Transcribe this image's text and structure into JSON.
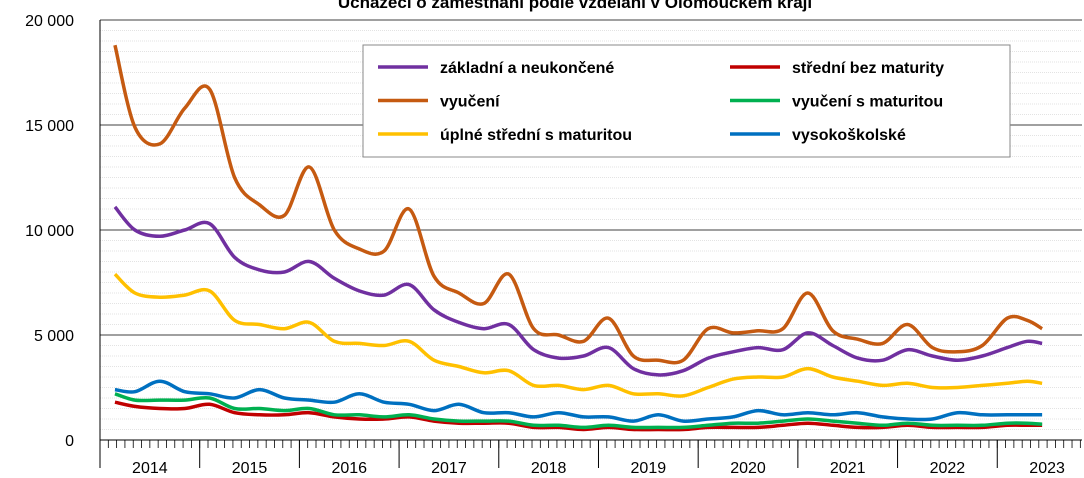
{
  "chart_data": {
    "type": "line",
    "title": "Uchazeči o zaměstnání podle vzdělání v Olomouckém kraji",
    "x": [
      2014.15,
      2014.35,
      2014.6,
      2014.85,
      2015.1,
      2015.35,
      2015.6,
      2015.85,
      2016.1,
      2016.35,
      2016.6,
      2016.85,
      2017.1,
      2017.35,
      2017.6,
      2017.85,
      2018.1,
      2018.35,
      2018.6,
      2018.85,
      2019.1,
      2019.35,
      2019.6,
      2019.85,
      2020.1,
      2020.35,
      2020.6,
      2020.85,
      2021.1,
      2021.35,
      2021.6,
      2021.85,
      2022.1,
      2022.35,
      2022.6,
      2022.85,
      2023.1,
      2023.3,
      2023.45
    ],
    "xlim": [
      2014,
      2023.85
    ],
    "xticks": [
      2014,
      2015,
      2016,
      2017,
      2018,
      2019,
      2020,
      2021,
      2022,
      2023
    ],
    "ylim": [
      0,
      20000
    ],
    "yticks": [
      0,
      {
        "value": 5000,
        "label": "5 000"
      },
      {
        "value": 10000,
        "label": "10 000"
      },
      {
        "value": 15000,
        "label": "15 000"
      },
      {
        "value": 20000,
        "label": "20 000"
      }
    ],
    "grid": true,
    "series": [
      {
        "name": "základní a neukončené",
        "color": "#7030a0",
        "values": [
          11100,
          10000,
          9700,
          10000,
          10300,
          8700,
          8100,
          8000,
          8500,
          7700,
          7100,
          6900,
          7400,
          6200,
          5600,
          5300,
          5500,
          4300,
          3900,
          4000,
          4400,
          3400,
          3100,
          3300,
          3900,
          4200,
          4400,
          4300,
          5100,
          4500,
          3900,
          3800,
          4300,
          4000,
          3800,
          4000,
          4400,
          4700,
          4600
        ]
      },
      {
        "name": "střední bez maturity",
        "color": "#c00000",
        "values": [
          1800,
          1600,
          1500,
          1500,
          1700,
          1300,
          1200,
          1200,
          1300,
          1100,
          1000,
          1000,
          1100,
          900,
          800,
          800,
          800,
          600,
          600,
          500,
          600,
          500,
          500,
          500,
          600,
          600,
          600,
          700,
          800,
          700,
          600,
          600,
          700,
          600,
          600,
          600,
          700,
          700,
          700
        ]
      },
      {
        "name": "vyučení",
        "color": "#c55a11",
        "values": [
          18800,
          14900,
          14100,
          15800,
          16700,
          12500,
          11200,
          10700,
          13000,
          10000,
          9100,
          9000,
          11000,
          7800,
          7000,
          6500,
          7900,
          5300,
          5000,
          4700,
          5800,
          4000,
          3800,
          3800,
          5300,
          5100,
          5200,
          5300,
          7000,
          5200,
          4800,
          4600,
          5500,
          4400,
          4200,
          4500,
          5800,
          5700,
          5300
        ]
      },
      {
        "name": "vyučení s maturitou",
        "color": "#00b050",
        "values": [
          2200,
          1900,
          1900,
          1900,
          2000,
          1500,
          1500,
          1400,
          1500,
          1200,
          1200,
          1100,
          1200,
          1000,
          900,
          900,
          900,
          700,
          700,
          600,
          700,
          600,
          600,
          600,
          700,
          800,
          800,
          900,
          1000,
          900,
          800,
          700,
          800,
          700,
          700,
          700,
          800,
          800,
          750
        ]
      },
      {
        "name": "úplné střední s maturitou",
        "color": "#ffc000",
        "values": [
          7900,
          7000,
          6800,
          6900,
          7100,
          5700,
          5500,
          5300,
          5600,
          4700,
          4600,
          4500,
          4700,
          3800,
          3500,
          3200,
          3300,
          2600,
          2600,
          2400,
          2600,
          2200,
          2200,
          2100,
          2500,
          2900,
          3000,
          3000,
          3400,
          3000,
          2800,
          2600,
          2700,
          2500,
          2500,
          2600,
          2700,
          2800,
          2700
        ]
      },
      {
        "name": "vysokoškolské",
        "color": "#0070c0",
        "values": [
          2400,
          2300,
          2800,
          2300,
          2200,
          2000,
          2400,
          2000,
          1900,
          1800,
          2200,
          1800,
          1700,
          1400,
          1700,
          1300,
          1300,
          1100,
          1300,
          1100,
          1100,
          900,
          1200,
          900,
          1000,
          1100,
          1400,
          1200,
          1300,
          1200,
          1300,
          1100,
          1000,
          1000,
          1300,
          1200,
          1200,
          1200,
          1200
        ]
      }
    ]
  }
}
